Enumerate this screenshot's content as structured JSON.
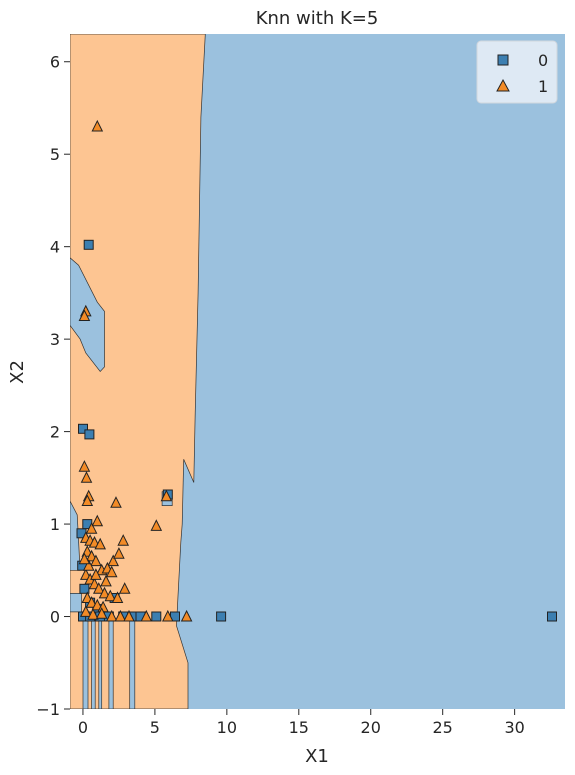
{
  "chart_data": {
    "type": "scatter",
    "title": "Knn with K=5",
    "xlabel": "X1",
    "ylabel": "X2",
    "xlim": [
      -0.9,
      33.5
    ],
    "ylim": [
      -1.0,
      6.3
    ],
    "xticks": [
      0,
      5,
      10,
      15,
      20,
      25,
      30
    ],
    "yticks": [
      -1,
      0,
      1,
      2,
      3,
      4,
      5,
      6
    ],
    "grid": false,
    "legend_position": "top-right",
    "colors": {
      "class0_region": "#9bc1de",
      "class1_region": "#fdc592",
      "class0_marker": "#3c7fb1",
      "class1_marker": "#f28b27",
      "edge": "#222222"
    },
    "regions": {
      "class1": [
        [
          [
            -0.9,
            6.3
          ],
          [
            8.5,
            6.3
          ],
          [
            8.2,
            5.4
          ],
          [
            8.0,
            3.5
          ],
          [
            7.8,
            2.2
          ],
          [
            7.7,
            1.45
          ],
          [
            7.0,
            1.7
          ],
          [
            6.9,
            1.0
          ],
          [
            6.8,
            0.8
          ],
          [
            6.6,
            0.2
          ],
          [
            6.5,
            -0.1
          ],
          [
            7.3,
            -0.5
          ],
          [
            7.3,
            -1.0
          ],
          [
            -0.9,
            -1.0
          ]
        ]
      ],
      "class0": [
        [
          [
            -0.9,
            3.88
          ],
          [
            -0.3,
            3.8
          ],
          [
            1.0,
            3.4
          ],
          [
            1.5,
            3.3
          ],
          [
            1.5,
            2.7
          ],
          [
            1.2,
            2.65
          ],
          [
            0.2,
            2.85
          ],
          [
            -0.2,
            3.0
          ],
          [
            -0.9,
            3.15
          ]
        ],
        [
          [
            5.5,
            1.35
          ],
          [
            6.2,
            1.35
          ],
          [
            6.2,
            1.2
          ],
          [
            5.5,
            1.2
          ]
        ],
        [
          [
            -0.9,
            1.25
          ],
          [
            -0.4,
            1.1
          ],
          [
            -0.2,
            0.5
          ],
          [
            -0.9,
            0.5
          ]
        ],
        [
          [
            -0.9,
            0.25
          ],
          [
            -0.1,
            0.25
          ],
          [
            -0.1,
            0.05
          ],
          [
            -0.9,
            0.05
          ]
        ],
        [
          [
            0.0,
            -1.0
          ],
          [
            0.35,
            -1.0
          ],
          [
            0.35,
            0.0
          ],
          [
            0.0,
            0.0
          ]
        ],
        [
          [
            0.6,
            -1.0
          ],
          [
            0.85,
            -1.0
          ],
          [
            0.85,
            0.0
          ],
          [
            0.6,
            0.0
          ]
        ],
        [
          [
            1.1,
            -1.0
          ],
          [
            1.3,
            -1.0
          ],
          [
            1.3,
            0.0
          ],
          [
            1.1,
            0.0
          ]
        ],
        [
          [
            1.8,
            -1.0
          ],
          [
            2.1,
            -1.0
          ],
          [
            2.1,
            0.0
          ],
          [
            1.8,
            0.0
          ]
        ],
        [
          [
            3.25,
            -1.0
          ],
          [
            3.6,
            -1.0
          ],
          [
            3.6,
            0.0
          ],
          [
            3.25,
            0.0
          ]
        ]
      ]
    },
    "series": [
      {
        "name": "0",
        "marker": "square",
        "points": [
          [
            0.4,
            4.02
          ],
          [
            0.0,
            2.03
          ],
          [
            0.45,
            1.97
          ],
          [
            5.9,
            1.32
          ],
          [
            -0.1,
            0.9
          ],
          [
            0.3,
            1.0
          ],
          [
            -0.05,
            0.55
          ],
          [
            0.1,
            0.3
          ],
          [
            0.5,
            0.15
          ],
          [
            1.0,
            0.08
          ],
          [
            2.2,
            0.2
          ],
          [
            2.8,
            0.0
          ],
          [
            3.5,
            0.0
          ],
          [
            4.0,
            0.0
          ],
          [
            5.1,
            0.0
          ],
          [
            6.4,
            0.0
          ],
          [
            9.6,
            0.0
          ],
          [
            32.6,
            0.0
          ],
          [
            0.0,
            0.0
          ],
          [
            0.5,
            0.0
          ],
          [
            1.2,
            0.0
          ],
          [
            1.8,
            0.0
          ]
        ]
      },
      {
        "name": "1",
        "marker": "triangle",
        "points": [
          [
            1.0,
            5.3
          ],
          [
            0.2,
            3.3
          ],
          [
            0.1,
            3.25
          ],
          [
            0.1,
            1.62
          ],
          [
            0.25,
            1.5
          ],
          [
            0.4,
            1.3
          ],
          [
            0.3,
            1.25
          ],
          [
            0.6,
            0.95
          ],
          [
            1.0,
            1.03
          ],
          [
            2.3,
            1.23
          ],
          [
            5.1,
            0.98
          ],
          [
            5.8,
            1.3
          ],
          [
            0.2,
            0.85
          ],
          [
            0.5,
            0.82
          ],
          [
            0.8,
            0.8
          ],
          [
            1.2,
            0.78
          ],
          [
            2.8,
            0.82
          ],
          [
            2.1,
            0.6
          ],
          [
            2.5,
            0.68
          ],
          [
            0.3,
            0.7
          ],
          [
            0.6,
            0.65
          ],
          [
            0.9,
            0.6
          ],
          [
            1.3,
            0.5
          ],
          [
            1.7,
            0.52
          ],
          [
            2.0,
            0.48
          ],
          [
            0.2,
            0.45
          ],
          [
            0.5,
            0.4
          ],
          [
            0.8,
            0.35
          ],
          [
            1.1,
            0.3
          ],
          [
            1.5,
            0.25
          ],
          [
            1.9,
            0.22
          ],
          [
            2.4,
            0.2
          ],
          [
            2.9,
            0.3
          ],
          [
            0.3,
            0.2
          ],
          [
            0.6,
            0.15
          ],
          [
            1.0,
            0.12
          ],
          [
            1.4,
            0.1
          ],
          [
            0.2,
            0.05
          ],
          [
            0.7,
            0.02
          ],
          [
            1.3,
            0.03
          ],
          [
            2.0,
            0.0
          ],
          [
            2.6,
            0.0
          ],
          [
            3.2,
            0.0
          ],
          [
            4.4,
            0.0
          ],
          [
            5.9,
            0.0
          ],
          [
            7.2,
            0.0
          ],
          [
            0.4,
            0.55
          ],
          [
            0.9,
            0.45
          ],
          [
            1.6,
            0.38
          ],
          [
            0.1,
            0.62
          ]
        ]
      }
    ]
  }
}
